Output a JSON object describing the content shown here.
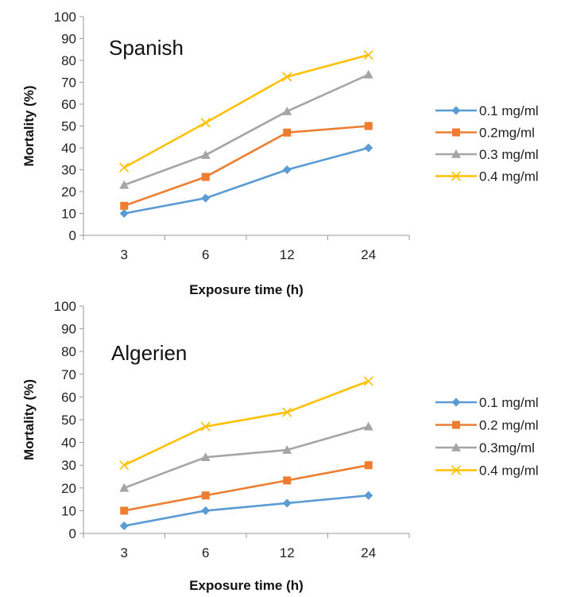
{
  "chart_data": [
    {
      "type": "line",
      "title": "Spanish",
      "categories": [
        "3",
        "6",
        "12",
        "24"
      ],
      "xlabel": "Exposure time (h)",
      "ylabel": "Mortality (%)",
      "ylim": [
        0,
        100
      ],
      "yticks": [
        0,
        10,
        20,
        30,
        40,
        50,
        60,
        70,
        80,
        90,
        100
      ],
      "grid": false,
      "legend_position": "right",
      "series": [
        {
          "name": "0.1 mg/ml",
          "marker": "diamond",
          "color": "#5B9BD5",
          "values": [
            10,
            17,
            30,
            40
          ]
        },
        {
          "name": "0.2mg/ml",
          "marker": "square",
          "color": "#ED7D31",
          "values": [
            13.5,
            26.7,
            47,
            50
          ]
        },
        {
          "name": "0.3 mg/ml",
          "marker": "triangle",
          "color": "#A5A5A5",
          "values": [
            23,
            36.7,
            56.7,
            73.5
          ]
        },
        {
          "name": "0.4 mg/ml",
          "marker": "x",
          "color": "#FFC000",
          "values": [
            31,
            51.5,
            72.5,
            82.5
          ]
        }
      ]
    },
    {
      "type": "line",
      "title": "Algerien",
      "categories": [
        "3",
        "6",
        "12",
        "24"
      ],
      "xlabel": "Exposure time (h)",
      "ylabel": "Mortality (%)",
      "ylim": [
        0,
        100
      ],
      "yticks": [
        0,
        10,
        20,
        30,
        40,
        50,
        60,
        70,
        80,
        90,
        100
      ],
      "grid": false,
      "legend_position": "right",
      "series": [
        {
          "name": "0.1 mg/ml",
          "marker": "diamond",
          "color": "#5B9BD5",
          "values": [
            3.3,
            10,
            13.3,
            16.7
          ]
        },
        {
          "name": "0.2 mg/ml",
          "marker": "square",
          "color": "#ED7D31",
          "values": [
            10,
            16.7,
            23.3,
            30
          ]
        },
        {
          "name": "0.3mg/ml",
          "marker": "triangle",
          "color": "#A5A5A5",
          "values": [
            20,
            33.5,
            36.7,
            47
          ]
        },
        {
          "name": "0.4 mg/ml",
          "marker": "x",
          "color": "#FFC000",
          "values": [
            30,
            47,
            53.3,
            67
          ]
        }
      ]
    }
  ]
}
